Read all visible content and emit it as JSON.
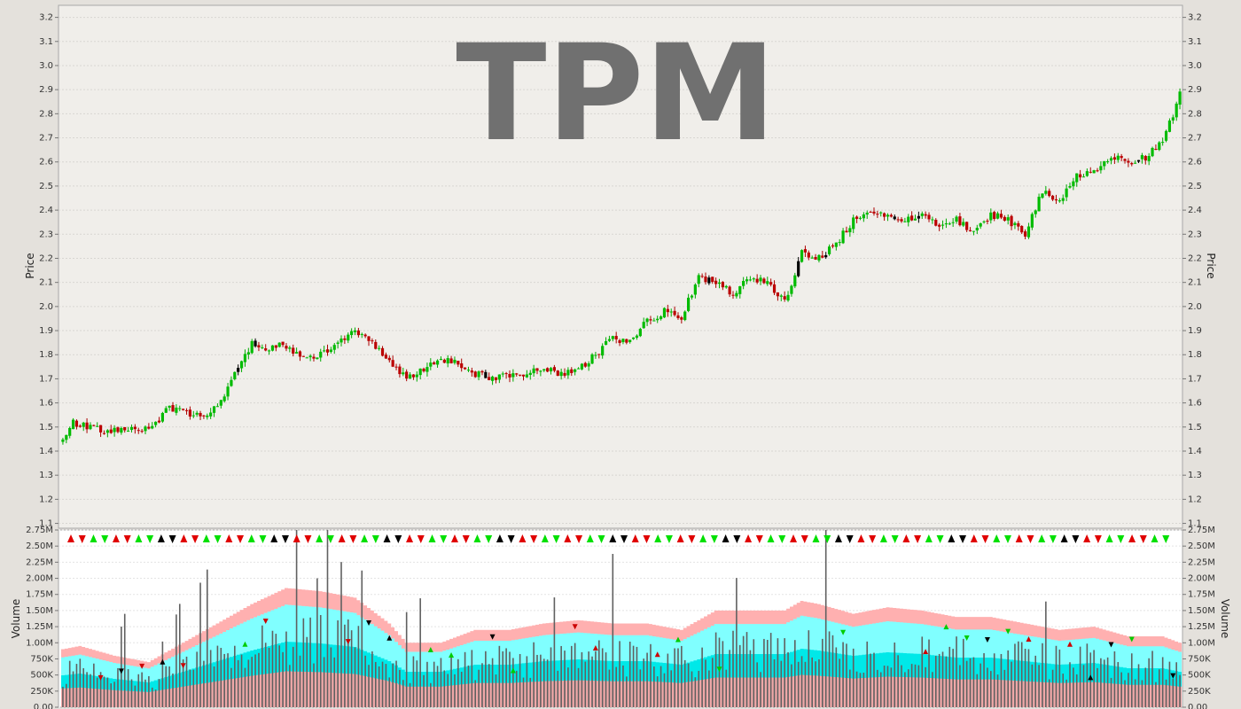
{
  "chart_data": [
    {
      "type": "candlestick",
      "title": "TPM",
      "ylabel": "Price",
      "ylim": [
        1.08,
        3.25
      ],
      "y_ticks": [
        "1.1",
        "1.2",
        "1.3",
        "1.4",
        "1.5",
        "1.6",
        "1.7",
        "1.8",
        "1.9",
        "2.0",
        "2.1",
        "2.2",
        "2.3",
        "2.4",
        "2.5",
        "2.6",
        "2.7",
        "2.8",
        "2.9",
        "3.0",
        "3.1",
        "3.2"
      ],
      "close_anchors": [
        [
          0,
          1.44
        ],
        [
          3,
          1.52
        ],
        [
          8,
          1.5
        ],
        [
          14,
          1.48
        ],
        [
          20,
          1.49
        ],
        [
          26,
          1.5
        ],
        [
          31,
          1.58
        ],
        [
          36,
          1.56
        ],
        [
          42,
          1.55
        ],
        [
          46,
          1.6
        ],
        [
          50,
          1.72
        ],
        [
          55,
          1.85
        ],
        [
          60,
          1.82
        ],
        [
          64,
          1.85
        ],
        [
          70,
          1.78
        ],
        [
          75,
          1.8
        ],
        [
          80,
          1.85
        ],
        [
          85,
          1.9
        ],
        [
          90,
          1.85
        ],
        [
          95,
          1.78
        ],
        [
          100,
          1.7
        ],
        [
          105,
          1.74
        ],
        [
          110,
          1.78
        ],
        [
          115,
          1.76
        ],
        [
          120,
          1.72
        ],
        [
          125,
          1.7
        ],
        [
          130,
          1.72
        ],
        [
          135,
          1.72
        ],
        [
          140,
          1.74
        ],
        [
          145,
          1.72
        ],
        [
          150,
          1.74
        ],
        [
          155,
          1.8
        ],
        [
          160,
          1.87
        ],
        [
          165,
          1.85
        ],
        [
          170,
          1.94
        ],
        [
          175,
          1.98
        ],
        [
          180,
          1.96
        ],
        [
          185,
          2.12
        ],
        [
          190,
          2.1
        ],
        [
          195,
          2.05
        ],
        [
          200,
          2.12
        ],
        [
          205,
          2.1
        ],
        [
          210,
          2.02
        ],
        [
          215,
          2.22
        ],
        [
          220,
          2.2
        ],
        [
          225,
          2.26
        ],
        [
          230,
          2.36
        ],
        [
          235,
          2.38
        ],
        [
          240,
          2.38
        ],
        [
          245,
          2.36
        ],
        [
          250,
          2.38
        ],
        [
          255,
          2.34
        ],
        [
          260,
          2.36
        ],
        [
          265,
          2.3
        ],
        [
          270,
          2.38
        ],
        [
          275,
          2.36
        ],
        [
          280,
          2.3
        ],
        [
          285,
          2.48
        ],
        [
          290,
          2.44
        ],
        [
          295,
          2.54
        ],
        [
          300,
          2.56
        ],
        [
          305,
          2.62
        ],
        [
          310,
          2.6
        ],
        [
          315,
          2.62
        ],
        [
          320,
          2.68
        ],
        [
          325,
          2.88
        ]
      ],
      "marker_pattern": [
        "up-red",
        "down-red",
        "up-green",
        "down-green",
        "up-red",
        "down-red",
        "up-green",
        "down-green",
        "up-black",
        "down-black"
      ],
      "colors": {
        "up": "#00bb00",
        "down": "#bb0000",
        "neutral": "#000000",
        "wick_up": "#00aa00",
        "wick_down": "#aa0000"
      }
    },
    {
      "type": "bar",
      "ylabel": "Volume",
      "ylim": [
        0,
        2750000
      ],
      "y_ticks": [
        "0.00",
        "250K",
        "500K",
        "750K",
        "1.00M",
        "1.25M",
        "1.50M",
        "1.75M",
        "2.00M",
        "2.25M",
        "2.50M",
        "2.75M"
      ],
      "bands": {
        "base_pink": "#f0a8a8",
        "inner_pink": "#ffb0b0",
        "cyan_outer": "#80ffff",
        "cyan_inner": "#00e8e8",
        "bar": "#606060"
      },
      "band_anchors": [
        [
          0,
          0.9
        ],
        [
          5,
          0.95
        ],
        [
          15,
          0.8
        ],
        [
          25,
          0.7
        ],
        [
          35,
          1.0
        ],
        [
          45,
          1.3
        ],
        [
          55,
          1.6
        ],
        [
          65,
          1.85
        ],
        [
          75,
          1.8
        ],
        [
          85,
          1.7
        ],
        [
          95,
          1.3
        ],
        [
          100,
          1.0
        ],
        [
          110,
          1.0
        ],
        [
          120,
          1.2
        ],
        [
          130,
          1.2
        ],
        [
          140,
          1.3
        ],
        [
          150,
          1.35
        ],
        [
          160,
          1.3
        ],
        [
          170,
          1.3
        ],
        [
          180,
          1.2
        ],
        [
          190,
          1.5
        ],
        [
          200,
          1.5
        ],
        [
          210,
          1.5
        ],
        [
          215,
          1.65
        ],
        [
          220,
          1.6
        ],
        [
          230,
          1.45
        ],
        [
          240,
          1.55
        ],
        [
          250,
          1.5
        ],
        [
          260,
          1.4
        ],
        [
          270,
          1.4
        ],
        [
          280,
          1.3
        ],
        [
          290,
          1.2
        ],
        [
          300,
          1.25
        ],
        [
          310,
          1.1
        ],
        [
          320,
          1.1
        ],
        [
          325,
          1.0
        ]
      ]
    }
  ]
}
